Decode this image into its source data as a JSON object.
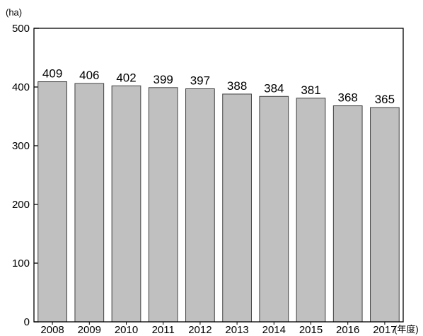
{
  "chart_data": {
    "type": "bar",
    "title": "",
    "ylabel": "(ha)",
    "xlabel": "(年度)",
    "categories": [
      "2008",
      "2009",
      "2010",
      "2011",
      "2012",
      "2013",
      "2014",
      "2015",
      "2016",
      "2017"
    ],
    "values": [
      409,
      406,
      402,
      399,
      397,
      388,
      384,
      381,
      368,
      365
    ],
    "data_labels": [
      "409",
      "406",
      "402",
      "399",
      "397",
      "388",
      "384",
      "381",
      "368",
      "365"
    ],
    "ylim": [
      0,
      500
    ],
    "yticks": [
      0,
      100,
      200,
      300,
      400,
      500
    ],
    "ytick_labels": [
      "0",
      "100",
      "200",
      "300",
      "400",
      "500"
    ],
    "grid": false,
    "legend": "none",
    "colors": {
      "bar_fill": "#c0c0c0",
      "bar_stroke": "#404040",
      "axis": "#000000"
    }
  }
}
